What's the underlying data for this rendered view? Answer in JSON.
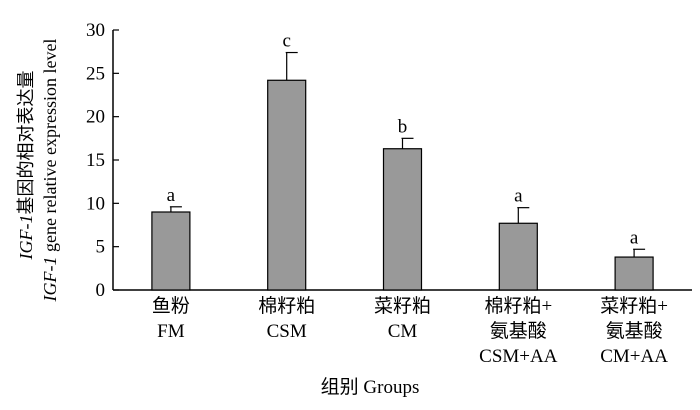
{
  "chart_data": {
    "type": "bar",
    "ylabel_cn_italic": "IGF-1",
    "ylabel_cn_rest": "基因的相对表达量",
    "ylabel_en_italic": "IGF-1",
    "ylabel_en_rest": " gene relative expression level",
    "xlabel": "组别  Groups",
    "ylim": [
      0,
      30
    ],
    "yticks": [
      0,
      5,
      10,
      15,
      20,
      25,
      30
    ],
    "categories": [
      {
        "lines": [
          "鱼粉",
          "FM"
        ]
      },
      {
        "lines": [
          "棉籽粕",
          "CSM"
        ]
      },
      {
        "lines": [
          "菜籽粕",
          "CM"
        ]
      },
      {
        "lines": [
          "棉籽粕+",
          "氨基酸",
          "CSM+AA"
        ]
      },
      {
        "lines": [
          "菜籽粕+",
          "氨基酸",
          "CM+AA"
        ]
      }
    ],
    "values": [
      9.0,
      24.2,
      16.3,
      7.7,
      3.8
    ],
    "errors": [
      0.6,
      3.2,
      1.2,
      1.8,
      0.9
    ],
    "significance": [
      "a",
      "c",
      "b",
      "a",
      "a"
    ],
    "bar_color": "#999999",
    "grid": false,
    "legend": "none"
  }
}
